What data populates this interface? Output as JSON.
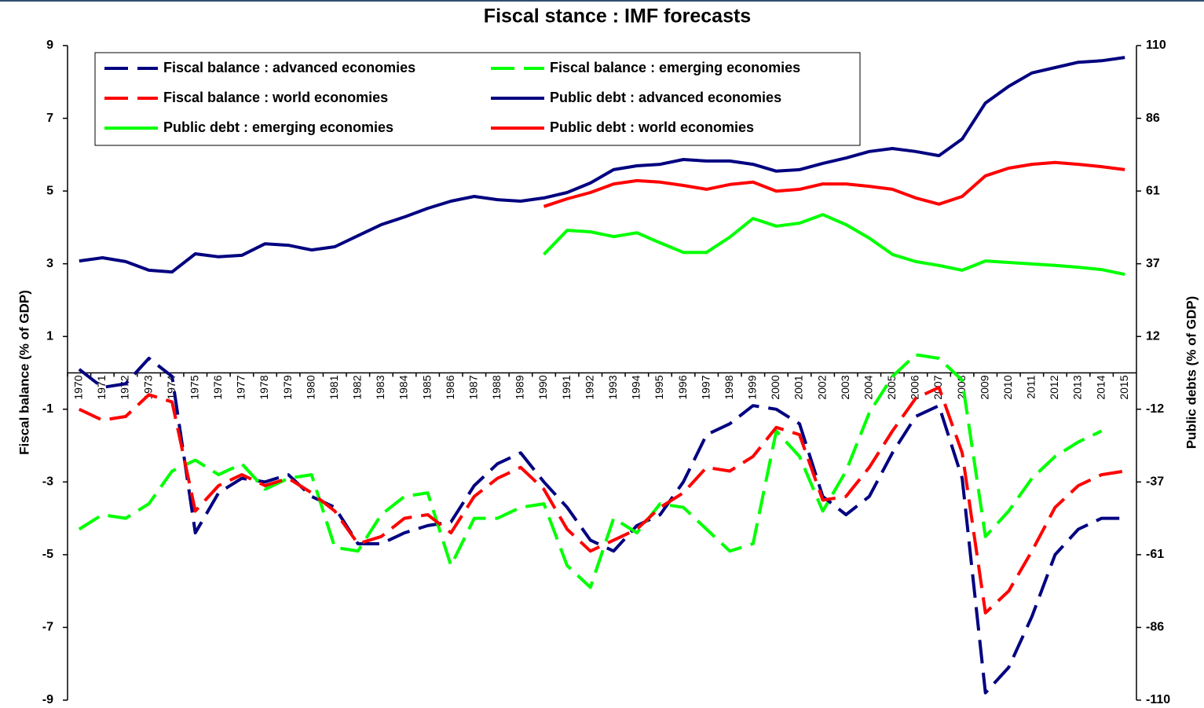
{
  "chart_data": {
    "type": "line",
    "title": "Fiscal stance : IMF forecasts",
    "y_label": "Fiscal balance (% of GDP)",
    "y2_label": "Public debts (% of GDP)",
    "categories": [
      "1970",
      "1971",
      "1972",
      "1973",
      "1974",
      "1975",
      "1976",
      "1977",
      "1978",
      "1979",
      "1980",
      "1981",
      "1982",
      "1983",
      "1984",
      "1985",
      "1986",
      "1987",
      "1988",
      "1989",
      "1990",
      "1991",
      "1992",
      "1993",
      "1994",
      "1995",
      "1996",
      "1997",
      "1998",
      "1999",
      "2000",
      "2001",
      "2002",
      "2003",
      "2004",
      "2005",
      "2006",
      "2007",
      "2008",
      "2009",
      "2010",
      "2011",
      "2012",
      "2013",
      "2014",
      "2015"
    ],
    "ylim": [
      -9,
      9
    ],
    "yticks": [
      -9,
      -7,
      -5,
      -3,
      -1,
      1,
      3,
      5,
      7,
      9
    ],
    "y2lim": [
      -110,
      110
    ],
    "y2ticks": [
      {
        "value": -110,
        "label": "-110"
      },
      {
        "value": -85.56,
        "label": "-86"
      },
      {
        "value": -61.11,
        "label": "-61"
      },
      {
        "value": -36.67,
        "label": "-37"
      },
      {
        "value": -12.22,
        "label": "-12"
      },
      {
        "value": 12.22,
        "label": "12"
      },
      {
        "value": 36.67,
        "label": "37"
      },
      {
        "value": 61.11,
        "label": "61"
      },
      {
        "value": 85.56,
        "label": "86"
      },
      {
        "value": 110,
        "label": "110"
      }
    ],
    "grid": false,
    "series": [
      {
        "name": "Fiscal balance : advanced economies",
        "color": "#000080",
        "dashed": true,
        "axis": "y",
        "values": [
          0.1,
          -0.4,
          -0.3,
          0.4,
          -0.1,
          -4.4,
          -3.3,
          -2.9,
          -3.0,
          -2.8,
          -3.4,
          -3.7,
          -4.7,
          -4.7,
          -4.4,
          -4.2,
          -4.1,
          -3.1,
          -2.5,
          -2.2,
          -3.0,
          -3.7,
          -4.6,
          -4.9,
          -4.2,
          -3.9,
          -3.0,
          -1.7,
          -1.4,
          -0.9,
          -1.0,
          -1.4,
          -3.4,
          -3.9,
          -3.4,
          -2.2,
          -1.2,
          -0.9,
          -2.9,
          -8.8,
          -8.1,
          -6.7,
          -5.0,
          -4.3,
          -4.0,
          -4.0
        ]
      },
      {
        "name": "Fiscal balance : emerging economies",
        "color": "#00ff00",
        "dashed": true,
        "axis": "y",
        "values": [
          -4.3,
          -3.9,
          -4.0,
          -3.6,
          -2.7,
          -2.4,
          -2.8,
          -2.5,
          -3.2,
          -2.9,
          -2.8,
          -4.8,
          -4.9,
          -3.9,
          -3.4,
          -3.3,
          -5.3,
          -4.0,
          -4.0,
          -3.7,
          -3.6,
          -5.3,
          -5.9,
          -4.0,
          -4.4,
          -3.6,
          -3.7,
          -4.3,
          -4.9,
          -4.7,
          -1.6,
          -2.3,
          -3.8,
          -2.7,
          -1.1,
          -0.1,
          0.5,
          0.4,
          -0.2,
          -4.5,
          -3.8,
          -2.9,
          -2.3,
          -1.9,
          -1.6,
          null
        ]
      },
      {
        "name": "Fiscal balance : world economies",
        "color": "#ff0000",
        "dashed": true,
        "axis": "y",
        "values": [
          -1.0,
          -1.3,
          -1.2,
          -0.6,
          -0.8,
          -3.8,
          -3.1,
          -2.8,
          -3.1,
          -2.9,
          -3.3,
          -3.8,
          -4.7,
          -4.5,
          -4.0,
          -3.9,
          -4.4,
          -3.4,
          -2.9,
          -2.6,
          -3.2,
          -4.3,
          -4.9,
          -4.6,
          -4.3,
          -3.7,
          -3.3,
          -2.6,
          -2.7,
          -2.3,
          -1.5,
          -1.7,
          -3.5,
          -3.4,
          -2.6,
          -1.6,
          -0.7,
          -0.4,
          -2.2,
          -6.6,
          -6.0,
          -4.9,
          -3.7,
          -3.1,
          -2.8,
          -2.7
        ]
      },
      {
        "name": "Public debt : advanced economies",
        "color": "#000080",
        "dashed": false,
        "axis": "y2",
        "values": [
          37.6,
          38.7,
          37.4,
          34.5,
          33.9,
          40.0,
          39.0,
          39.5,
          43.4,
          42.9,
          41.3,
          42.4,
          46.1,
          49.8,
          52.4,
          55.3,
          57.7,
          59.3,
          58.2,
          57.7,
          58.8,
          60.6,
          63.8,
          68.3,
          69.6,
          70.1,
          71.7,
          71.2,
          71.2,
          70.1,
          67.8,
          68.3,
          70.4,
          72.2,
          74.4,
          75.4,
          74.4,
          73.0,
          78.6,
          90.7,
          96.3,
          100.8,
          102.6,
          104.4,
          104.9,
          106.0
        ]
      },
      {
        "name": "Public debt : emerging economies",
        "color": "#00ff00",
        "dashed": false,
        "axis": "y2",
        "values": [
          null,
          null,
          null,
          null,
          null,
          null,
          null,
          null,
          null,
          null,
          null,
          null,
          null,
          null,
          null,
          null,
          null,
          null,
          null,
          null,
          39.8,
          47.9,
          47.4,
          45.8,
          47.1,
          43.7,
          40.5,
          40.5,
          45.6,
          51.9,
          49.3,
          50.3,
          53.2,
          49.8,
          45.3,
          39.8,
          37.4,
          36.1,
          34.5,
          37.6,
          37.1,
          36.6,
          36.1,
          35.5,
          34.7,
          33.1
        ]
      },
      {
        "name": "Public debt : world economies",
        "color": "#ff0000",
        "dashed": false,
        "axis": "y2",
        "values": [
          null,
          null,
          null,
          null,
          null,
          null,
          null,
          null,
          null,
          null,
          null,
          null,
          null,
          null,
          null,
          null,
          null,
          null,
          null,
          null,
          55.9,
          58.5,
          60.6,
          63.5,
          64.6,
          64.1,
          63.0,
          61.7,
          63.3,
          64.1,
          61.1,
          61.7,
          63.5,
          63.5,
          62.7,
          61.7,
          58.8,
          56.7,
          59.3,
          66.2,
          68.8,
          70.1,
          70.7,
          70.1,
          69.3,
          68.3
        ]
      }
    ]
  }
}
